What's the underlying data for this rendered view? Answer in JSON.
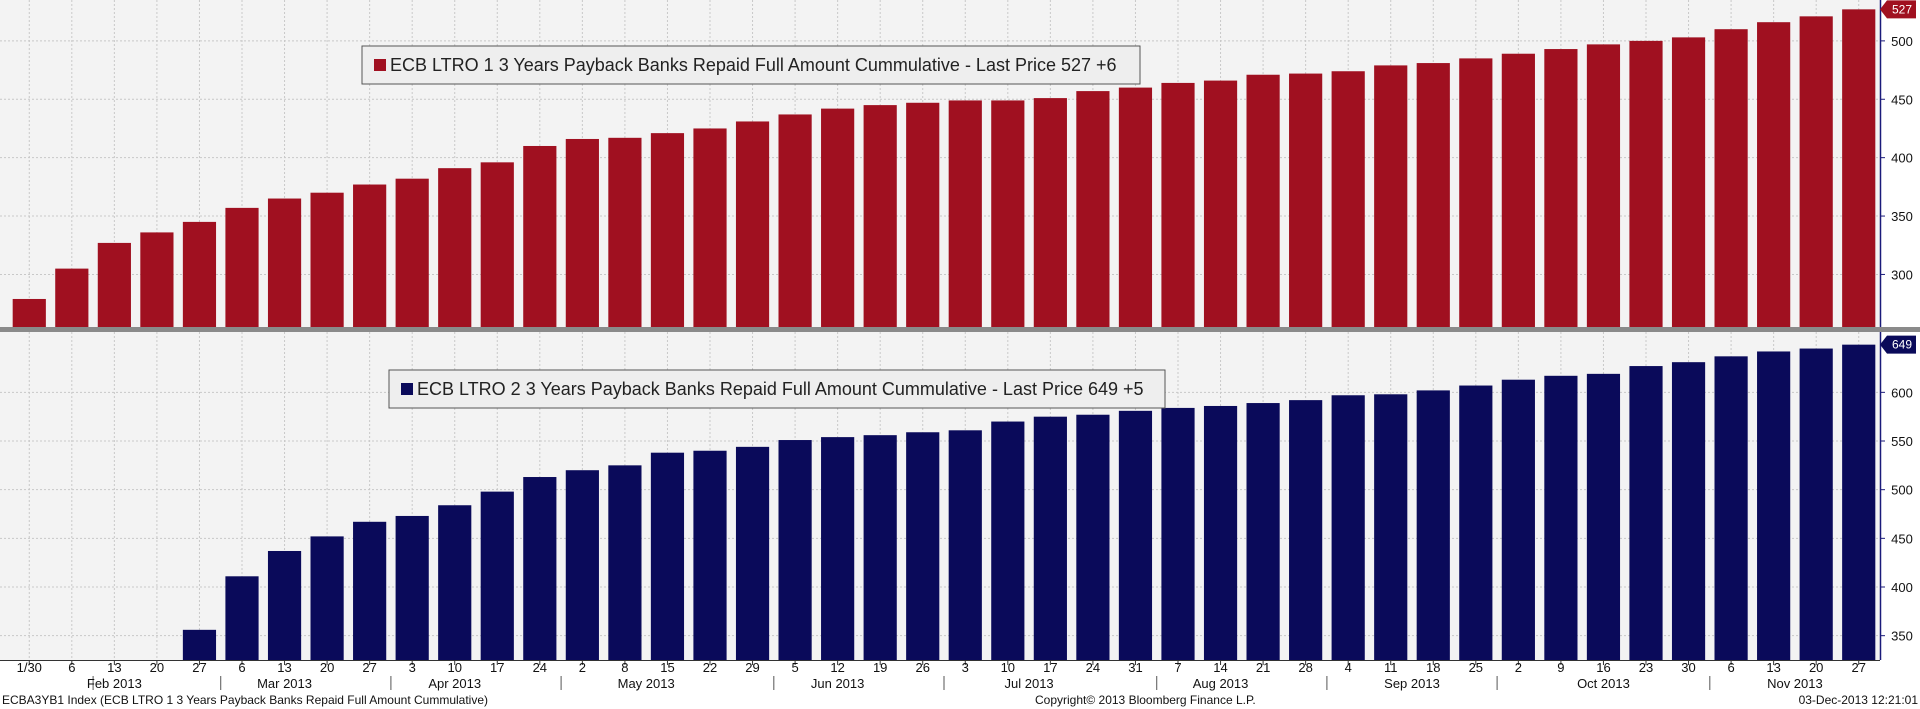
{
  "colors": {
    "panel_bg": "#f3f3f3",
    "grid": "#c8c8c8",
    "axis": "#1a1a7a",
    "divider": "#8a8a8a",
    "legend_bg": "#eeeeee",
    "legend_border": "#555555"
  },
  "footer": {
    "index_label": "ECBA3YB1 Index (ECB LTRO 1 3 Years Payback Banks Repaid Full Amount Cummulative)",
    "copyright": "Copyright© 2013 Bloomberg Finance L.P.",
    "timestamp": "03-Dec-2013 12:21:01"
  },
  "chart_data": [
    {
      "type": "bar",
      "series_name": "ECB LTRO 1 3 Years Payback Banks Repaid Full Amount Cummulative",
      "legend_suffix": "- Last Price 527  +6",
      "color": "#a01020",
      "last_value_label": "527",
      "ylim": [
        255,
        535
      ],
      "yticks": [
        300,
        350,
        400,
        450,
        500
      ],
      "grid": true,
      "legend_position": "top-left",
      "categories": [
        "1/30",
        "6",
        "13",
        "20",
        "27",
        "6",
        "13",
        "20",
        "27",
        "3",
        "10",
        "17",
        "24",
        "2",
        "8",
        "15",
        "22",
        "29",
        "5",
        "12",
        "19",
        "26",
        "3",
        "10",
        "17",
        "24",
        "31",
        "7",
        "14",
        "21",
        "28",
        "4",
        "11",
        "18",
        "25",
        "2",
        "9",
        "16",
        "23",
        "30",
        "6",
        "13",
        "20",
        "27"
      ],
      "values": [
        279,
        305,
        327,
        336,
        345,
        357,
        365,
        370,
        377,
        382,
        391,
        396,
        410,
        416,
        417,
        421,
        425,
        431,
        437,
        442,
        445,
        447,
        449,
        449,
        451,
        457,
        460,
        464,
        466,
        471,
        472,
        474,
        479,
        481,
        485,
        489,
        493,
        497,
        500,
        503,
        510,
        516,
        521,
        527
      ]
    },
    {
      "type": "bar",
      "series_name": "ECB LTRO 2 3 Years Payback Banks Repaid Full Amount Cummulative",
      "legend_suffix": "- Last Price 649  +5",
      "color": "#0a0a5a",
      "last_value_label": "649",
      "ylim": [
        325,
        662
      ],
      "yticks": [
        350,
        400,
        450,
        500,
        550,
        600
      ],
      "grid": true,
      "legend_position": "top-left",
      "categories": [
        "1/30",
        "6",
        "13",
        "20",
        "27",
        "6",
        "13",
        "20",
        "27",
        "3",
        "10",
        "17",
        "24",
        "2",
        "8",
        "15",
        "22",
        "29",
        "5",
        "12",
        "19",
        "26",
        "3",
        "10",
        "17",
        "24",
        "31",
        "7",
        "14",
        "21",
        "28",
        "4",
        "11",
        "18",
        "25",
        "2",
        "9",
        "16",
        "23",
        "30",
        "6",
        "13",
        "20",
        "27"
      ],
      "values": [
        null,
        null,
        null,
        null,
        356,
        411,
        437,
        452,
        467,
        473,
        484,
        498,
        513,
        520,
        525,
        538,
        540,
        544,
        551,
        554,
        556,
        559,
        561,
        570,
        575,
        577,
        581,
        584,
        586,
        589,
        592,
        597,
        598,
        602,
        607,
        613,
        617,
        619,
        627,
        631,
        637,
        642,
        645,
        649
      ]
    }
  ],
  "x_axis": {
    "tick_labels": [
      "1/30",
      "6",
      "13",
      "20",
      "27",
      "6",
      "13",
      "20",
      "27",
      "3",
      "10",
      "17",
      "24",
      "2",
      "8",
      "15",
      "22",
      "29",
      "5",
      "12",
      "19",
      "26",
      "3",
      "10",
      "17",
      "24",
      "31",
      "7",
      "14",
      "21",
      "28",
      "4",
      "11",
      "18",
      "25",
      "2",
      "9",
      "16",
      "23",
      "30",
      "6",
      "13",
      "20",
      "27"
    ],
    "months": [
      {
        "label": "Feb 2013",
        "center": 2.0
      },
      {
        "label": "Mar 2013",
        "center": 6.0
      },
      {
        "label": "Apr 2013",
        "center": 10.0
      },
      {
        "label": "May 2013",
        "center": 14.5
      },
      {
        "label": "Jun 2013",
        "center": 19.0
      },
      {
        "label": "Jul 2013",
        "center": 23.5
      },
      {
        "label": "Aug 2013",
        "center": 28.0
      },
      {
        "label": "Sep 2013",
        "center": 32.5
      },
      {
        "label": "Oct 2013",
        "center": 37.0
      },
      {
        "label": "Nov 2013",
        "center": 41.5
      }
    ],
    "month_boundaries": [
      1.5,
      4.5,
      8.5,
      12.5,
      17.5,
      21.5,
      26.5,
      30.5,
      34.5,
      39.5
    ]
  }
}
